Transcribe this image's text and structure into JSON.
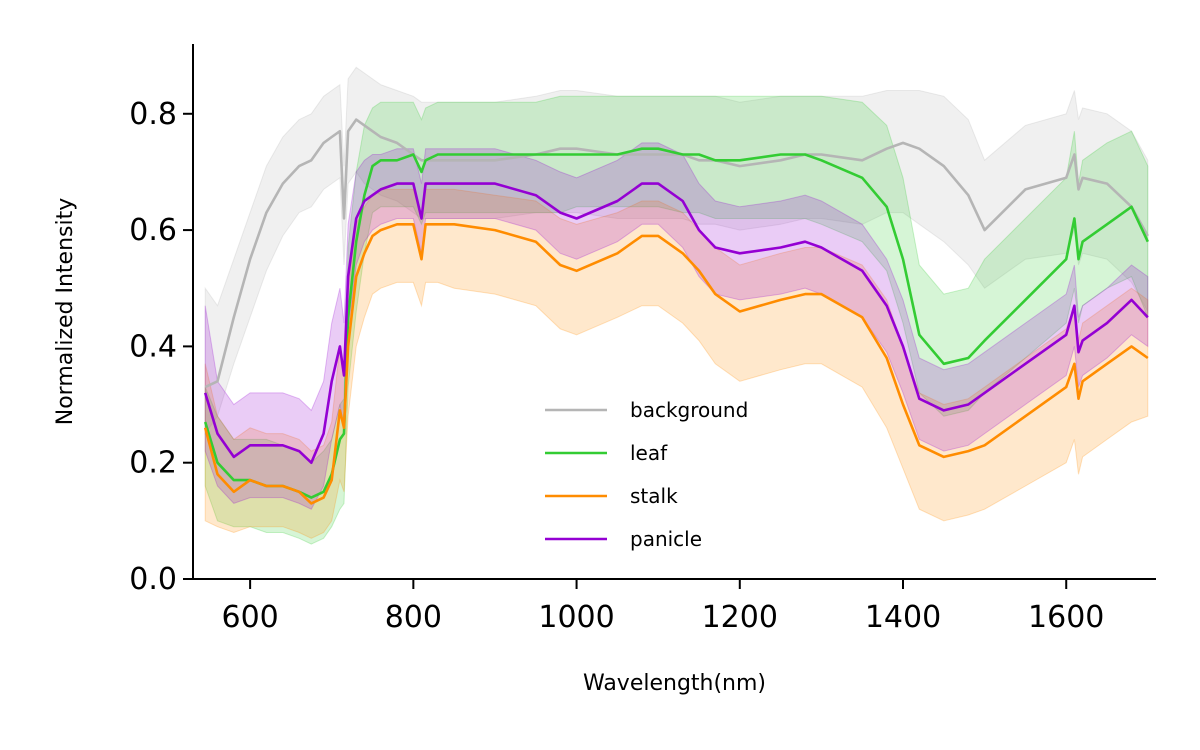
{
  "chart_data": {
    "type": "line",
    "title": "",
    "xlabel": "Wavelength(nm)",
    "ylabel": "Normalized Intensity",
    "xlim": [
      530,
      1710
    ],
    "ylim": [
      0.0,
      0.92
    ],
    "xticks": [
      600,
      800,
      1000,
      1200,
      1400,
      1600
    ],
    "xtick_labels": [
      "600",
      "800",
      "1000",
      "1200",
      "1400",
      "1600"
    ],
    "yticks": [
      0.0,
      0.2,
      0.4,
      0.6,
      0.8
    ],
    "ytick_labels": [
      "0.0",
      "0.2",
      "0.4",
      "0.6",
      "0.8"
    ],
    "grid": false,
    "legend_position": "lower-center",
    "shaded_band": "mean ± spread per series",
    "x": [
      545,
      560,
      580,
      600,
      620,
      640,
      660,
      675,
      690,
      700,
      710,
      715,
      720,
      730,
      740,
      750,
      760,
      780,
      800,
      810,
      815,
      830,
      850,
      900,
      950,
      980,
      1000,
      1050,
      1080,
      1100,
      1130,
      1150,
      1170,
      1200,
      1250,
      1280,
      1300,
      1350,
      1380,
      1400,
      1420,
      1450,
      1480,
      1500,
      1550,
      1600,
      1610,
      1615,
      1620,
      1650,
      1680,
      1700
    ],
    "series": [
      {
        "name": "background",
        "color": "#b5b5b5",
        "values": [
          0.33,
          0.34,
          0.45,
          0.55,
          0.63,
          0.68,
          0.71,
          0.72,
          0.75,
          0.76,
          0.77,
          0.62,
          0.77,
          0.79,
          0.78,
          0.77,
          0.76,
          0.75,
          0.73,
          0.72,
          0.72,
          0.72,
          0.72,
          0.72,
          0.73,
          0.74,
          0.74,
          0.73,
          0.73,
          0.73,
          0.73,
          0.72,
          0.72,
          0.71,
          0.72,
          0.73,
          0.73,
          0.72,
          0.74,
          0.75,
          0.74,
          0.71,
          0.66,
          0.6,
          0.67,
          0.69,
          0.73,
          0.67,
          0.69,
          0.68,
          0.64,
          0.59
        ],
        "lower": [
          0.25,
          0.28,
          0.37,
          0.45,
          0.53,
          0.59,
          0.63,
          0.64,
          0.67,
          0.68,
          0.69,
          0.54,
          0.68,
          0.7,
          0.68,
          0.67,
          0.66,
          0.65,
          0.63,
          0.62,
          0.62,
          0.62,
          0.62,
          0.62,
          0.63,
          0.63,
          0.63,
          0.62,
          0.62,
          0.62,
          0.62,
          0.61,
          0.61,
          0.6,
          0.61,
          0.62,
          0.62,
          0.61,
          0.63,
          0.63,
          0.61,
          0.58,
          0.54,
          0.5,
          0.55,
          0.56,
          0.6,
          0.54,
          0.56,
          0.55,
          0.51,
          0.46
        ],
        "upper": [
          0.5,
          0.47,
          0.55,
          0.63,
          0.71,
          0.76,
          0.79,
          0.8,
          0.83,
          0.84,
          0.85,
          0.71,
          0.86,
          0.88,
          0.87,
          0.86,
          0.85,
          0.84,
          0.83,
          0.82,
          0.82,
          0.82,
          0.82,
          0.82,
          0.83,
          0.84,
          0.84,
          0.83,
          0.83,
          0.83,
          0.83,
          0.83,
          0.83,
          0.82,
          0.83,
          0.83,
          0.83,
          0.83,
          0.84,
          0.84,
          0.84,
          0.83,
          0.79,
          0.72,
          0.78,
          0.8,
          0.84,
          0.79,
          0.81,
          0.8,
          0.77,
          0.72
        ]
      },
      {
        "name": "leaf",
        "color": "#33cc33",
        "values": [
          0.27,
          0.2,
          0.17,
          0.17,
          0.16,
          0.16,
          0.15,
          0.14,
          0.15,
          0.18,
          0.24,
          0.25,
          0.45,
          0.58,
          0.66,
          0.71,
          0.72,
          0.72,
          0.73,
          0.7,
          0.72,
          0.73,
          0.73,
          0.73,
          0.73,
          0.73,
          0.73,
          0.73,
          0.74,
          0.74,
          0.73,
          0.73,
          0.72,
          0.72,
          0.73,
          0.73,
          0.72,
          0.69,
          0.64,
          0.55,
          0.42,
          0.37,
          0.38,
          0.41,
          0.48,
          0.55,
          0.62,
          0.55,
          0.58,
          0.61,
          0.64,
          0.58
        ],
        "lower": [
          0.16,
          0.1,
          0.09,
          0.09,
          0.08,
          0.08,
          0.07,
          0.06,
          0.07,
          0.09,
          0.12,
          0.13,
          0.33,
          0.46,
          0.56,
          0.63,
          0.64,
          0.64,
          0.64,
          0.61,
          0.63,
          0.63,
          0.63,
          0.63,
          0.63,
          0.63,
          0.64,
          0.64,
          0.64,
          0.64,
          0.63,
          0.63,
          0.62,
          0.62,
          0.62,
          0.62,
          0.61,
          0.58,
          0.53,
          0.44,
          0.32,
          0.28,
          0.29,
          0.32,
          0.38,
          0.44,
          0.5,
          0.44,
          0.47,
          0.5,
          0.52,
          0.45
        ],
        "upper": [
          0.33,
          0.28,
          0.24,
          0.24,
          0.24,
          0.23,
          0.22,
          0.2,
          0.22,
          0.24,
          0.3,
          0.31,
          0.57,
          0.7,
          0.78,
          0.81,
          0.82,
          0.82,
          0.82,
          0.79,
          0.81,
          0.82,
          0.82,
          0.82,
          0.82,
          0.83,
          0.83,
          0.83,
          0.83,
          0.83,
          0.83,
          0.83,
          0.83,
          0.83,
          0.83,
          0.83,
          0.83,
          0.82,
          0.78,
          0.69,
          0.54,
          0.49,
          0.5,
          0.55,
          0.62,
          0.69,
          0.77,
          0.68,
          0.72,
          0.75,
          0.77,
          0.71
        ]
      },
      {
        "name": "stalk",
        "color": "#ff8c00",
        "values": [
          0.26,
          0.18,
          0.15,
          0.17,
          0.16,
          0.16,
          0.15,
          0.13,
          0.14,
          0.17,
          0.29,
          0.26,
          0.4,
          0.52,
          0.56,
          0.59,
          0.6,
          0.61,
          0.61,
          0.55,
          0.61,
          0.61,
          0.61,
          0.6,
          0.58,
          0.54,
          0.53,
          0.56,
          0.59,
          0.59,
          0.56,
          0.53,
          0.49,
          0.46,
          0.48,
          0.49,
          0.49,
          0.45,
          0.38,
          0.3,
          0.23,
          0.21,
          0.22,
          0.23,
          0.28,
          0.33,
          0.37,
          0.31,
          0.34,
          0.37,
          0.4,
          0.38
        ],
        "lower": [
          0.1,
          0.09,
          0.08,
          0.09,
          0.09,
          0.09,
          0.08,
          0.07,
          0.08,
          0.1,
          0.17,
          0.15,
          0.28,
          0.4,
          0.45,
          0.49,
          0.5,
          0.51,
          0.51,
          0.47,
          0.51,
          0.51,
          0.5,
          0.49,
          0.47,
          0.43,
          0.42,
          0.45,
          0.47,
          0.47,
          0.44,
          0.41,
          0.37,
          0.34,
          0.36,
          0.37,
          0.37,
          0.33,
          0.26,
          0.19,
          0.12,
          0.1,
          0.11,
          0.12,
          0.16,
          0.2,
          0.24,
          0.18,
          0.21,
          0.24,
          0.27,
          0.28
        ],
        "upper": [
          0.37,
          0.28,
          0.24,
          0.26,
          0.25,
          0.25,
          0.24,
          0.22,
          0.23,
          0.27,
          0.4,
          0.36,
          0.5,
          0.61,
          0.64,
          0.66,
          0.67,
          0.67,
          0.67,
          0.62,
          0.67,
          0.67,
          0.67,
          0.66,
          0.65,
          0.62,
          0.61,
          0.63,
          0.65,
          0.65,
          0.63,
          0.6,
          0.57,
          0.54,
          0.56,
          0.57,
          0.57,
          0.54,
          0.48,
          0.4,
          0.32,
          0.3,
          0.31,
          0.33,
          0.38,
          0.43,
          0.47,
          0.41,
          0.44,
          0.47,
          0.5,
          0.48
        ]
      },
      {
        "name": "panicle",
        "color": "#9400d3",
        "values": [
          0.32,
          0.25,
          0.21,
          0.23,
          0.23,
          0.23,
          0.22,
          0.2,
          0.25,
          0.34,
          0.4,
          0.35,
          0.52,
          0.62,
          0.65,
          0.66,
          0.67,
          0.68,
          0.68,
          0.62,
          0.68,
          0.68,
          0.68,
          0.68,
          0.66,
          0.63,
          0.62,
          0.65,
          0.68,
          0.68,
          0.65,
          0.6,
          0.57,
          0.56,
          0.57,
          0.58,
          0.57,
          0.53,
          0.47,
          0.4,
          0.31,
          0.29,
          0.3,
          0.32,
          0.37,
          0.42,
          0.47,
          0.39,
          0.41,
          0.44,
          0.48,
          0.45
        ],
        "lower": [
          0.22,
          0.16,
          0.13,
          0.14,
          0.14,
          0.14,
          0.13,
          0.12,
          0.16,
          0.24,
          0.3,
          0.26,
          0.43,
          0.54,
          0.58,
          0.6,
          0.61,
          0.62,
          0.62,
          0.56,
          0.62,
          0.62,
          0.62,
          0.62,
          0.6,
          0.56,
          0.55,
          0.58,
          0.61,
          0.61,
          0.57,
          0.52,
          0.49,
          0.48,
          0.49,
          0.5,
          0.49,
          0.45,
          0.39,
          0.32,
          0.24,
          0.22,
          0.23,
          0.25,
          0.3,
          0.35,
          0.4,
          0.33,
          0.35,
          0.38,
          0.42,
          0.4
        ],
        "upper": [
          0.47,
          0.34,
          0.3,
          0.32,
          0.32,
          0.32,
          0.31,
          0.29,
          0.34,
          0.44,
          0.5,
          0.44,
          0.61,
          0.7,
          0.72,
          0.73,
          0.73,
          0.74,
          0.74,
          0.68,
          0.74,
          0.74,
          0.74,
          0.74,
          0.72,
          0.7,
          0.69,
          0.72,
          0.75,
          0.75,
          0.73,
          0.68,
          0.65,
          0.64,
          0.65,
          0.66,
          0.65,
          0.61,
          0.55,
          0.48,
          0.38,
          0.36,
          0.37,
          0.39,
          0.44,
          0.49,
          0.54,
          0.45,
          0.47,
          0.5,
          0.54,
          0.52
        ]
      }
    ]
  }
}
